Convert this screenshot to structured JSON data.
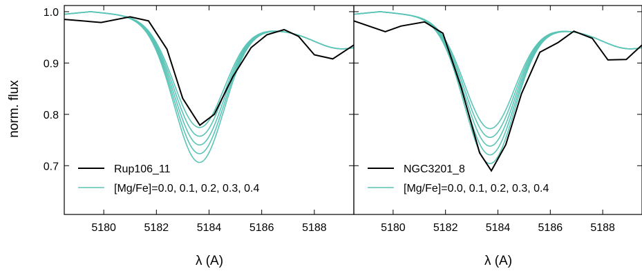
{
  "chart_data": [
    {
      "type": "line",
      "title": "",
      "xlabel": "λ (A)",
      "ylabel": "norm. flux",
      "xlim": [
        5178.5,
        5189.5
      ],
      "ylim": [
        0.605,
        1.012
      ],
      "xticks": [
        5180,
        5182,
        5184,
        5186,
        5188
      ],
      "yticks": [
        0.7,
        0.8,
        0.9,
        1.0
      ],
      "ytick_labels": [
        "0.7",
        "0.8",
        "0.9",
        "1.0"
      ],
      "legend_position": "bottom-left",
      "series": [
        {
          "name": "Rup106_11",
          "color": "#000000",
          "x": [
            5178.5,
            5179.9,
            5181.0,
            5181.7,
            5182.4,
            5183.0,
            5183.65,
            5184.2,
            5184.9,
            5185.6,
            5186.2,
            5186.85,
            5187.4,
            5188.0,
            5188.7,
            5189.5
          ],
          "y": [
            0.985,
            0.979,
            0.99,
            0.982,
            0.927,
            0.831,
            0.779,
            0.8,
            0.873,
            0.93,
            0.955,
            0.965,
            0.952,
            0.916,
            0.908,
            0.935
          ]
        },
        {
          "name": "[Mg/Fe]=0.0, 0.1, 0.2, 0.3, 0.4",
          "color": "#5bc4b6",
          "type": "model-family",
          "center": 5183.62,
          "depths": [
            0.205,
            0.222,
            0.239,
            0.256,
            0.273
          ]
        }
      ]
    },
    {
      "type": "line",
      "title": "",
      "xlabel": "λ (A)",
      "ylabel": "",
      "xlim": [
        5178.5,
        5189.5
      ],
      "ylim": [
        0.605,
        1.012
      ],
      "xticks": [
        5180,
        5182,
        5184,
        5186,
        5188
      ],
      "yticks": [
        0.7,
        0.8,
        0.9,
        1.0
      ],
      "legend_position": "bottom-left",
      "series": [
        {
          "name": "NGC3201_8",
          "color": "#000000",
          "x": [
            5178.5,
            5179.7,
            5180.3,
            5181.2,
            5181.9,
            5182.6,
            5183.3,
            5183.75,
            5184.3,
            5184.9,
            5185.6,
            5186.3,
            5186.9,
            5187.6,
            5188.2,
            5188.9,
            5189.5
          ],
          "y": [
            0.982,
            0.961,
            0.972,
            0.98,
            0.958,
            0.852,
            0.725,
            0.69,
            0.741,
            0.84,
            0.921,
            0.94,
            0.962,
            0.948,
            0.906,
            0.907,
            0.935
          ]
        },
        {
          "name": "[Mg/Fe]=0.0, 0.1, 0.2, 0.3, 0.4",
          "color": "#5bc4b6",
          "type": "model-family",
          "center": 5183.68,
          "depths": [
            0.207,
            0.224,
            0.241,
            0.258,
            0.275
          ]
        }
      ]
    }
  ]
}
